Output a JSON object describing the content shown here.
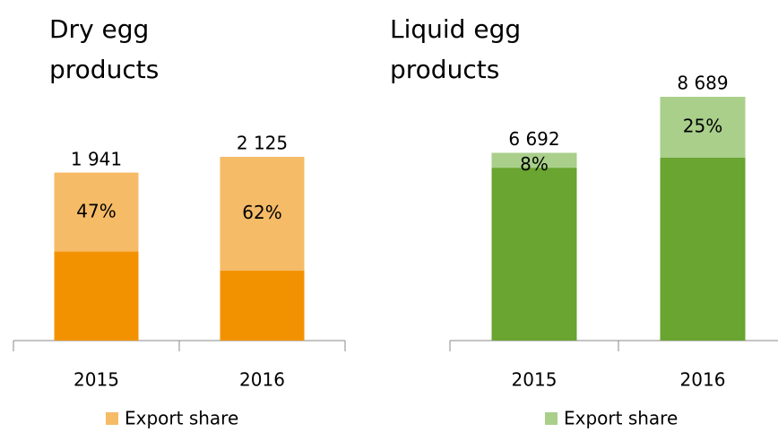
{
  "chart_data": [
    {
      "type": "bar",
      "title": "Dry egg products",
      "categories": [
        "2015",
        "2016"
      ],
      "totals": [
        1941,
        2125
      ],
      "total_labels": [
        "1 941",
        "2 125"
      ],
      "base_color": "#f39200",
      "series": [
        {
          "name": "Export share",
          "color": "#f5bb67",
          "values": [
            47,
            62
          ],
          "value_labels": [
            "47%",
            "62%"
          ]
        }
      ]
    },
    {
      "type": "bar",
      "title": "Liquid egg products",
      "categories": [
        "2015",
        "2016"
      ],
      "totals": [
        6692,
        8689
      ],
      "total_labels": [
        "6 692",
        "8 689"
      ],
      "base_color": "#6aa431",
      "series": [
        {
          "name": "Export share",
          "color": "#a9cf8b",
          "values": [
            8,
            25
          ],
          "value_labels": [
            "8%",
            "25%"
          ]
        }
      ]
    }
  ]
}
